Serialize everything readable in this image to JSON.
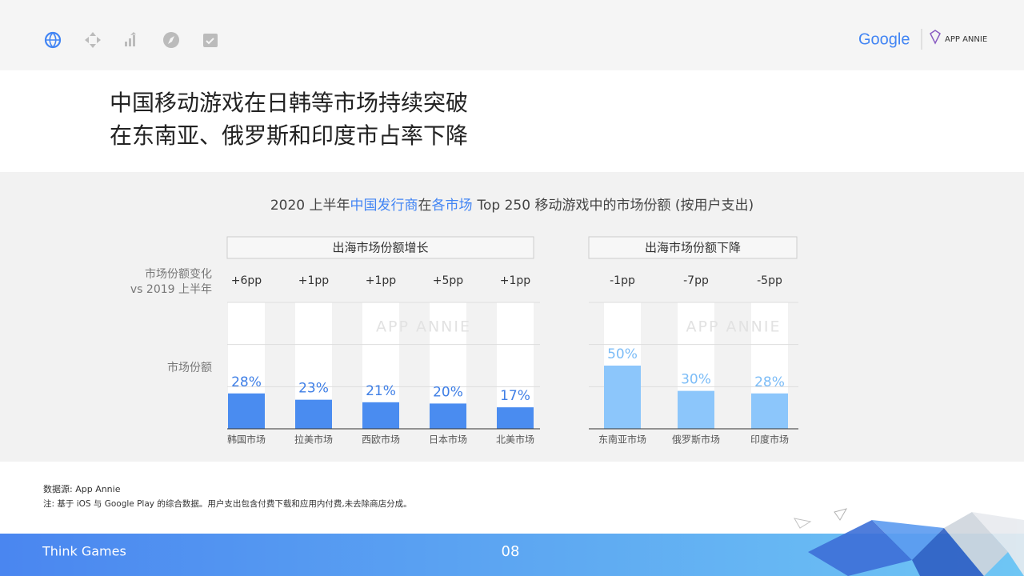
{
  "header": {
    "google_logo": "Google",
    "partner_logo": "APP ANNIE"
  },
  "title_lines": [
    "中国移动游戏在日韩等市场持续突破",
    "在东南亚、俄罗斯和印度市占率下降"
  ],
  "chart_header": {
    "title_parts": [
      "2020 上半年",
      "中国发行商",
      "在",
      "各市场",
      "Top 250 移动游戏中的市场份额 (按用户支出)"
    ],
    "title_highlight": [
      false,
      true,
      false,
      true,
      false
    ],
    "row_label_change": [
      "市场份额变化",
      "vs 2019 上半年"
    ],
    "row_label_share": "市场份额",
    "watermark": "APP ANNIE"
  },
  "chart_data": [
    {
      "type": "bar",
      "group_title": "出海市场份额增长",
      "categories": [
        "韩国市场",
        "拉美市场",
        "西欧市场",
        "日本市场",
        "北美市场"
      ],
      "values": [
        28,
        23,
        21,
        20,
        17
      ],
      "value_labels": [
        "28%",
        "23%",
        "21%",
        "20%",
        "17%"
      ],
      "change_labels": [
        "+6pp",
        "+1pp",
        "+1pp",
        "+5pp",
        "+1pp"
      ],
      "color": "#4a8cf0",
      "label_color": "#3f7fe6",
      "ylim": [
        0,
        100
      ]
    },
    {
      "type": "bar",
      "group_title": "出海市场份额下降",
      "categories": [
        "东南亚市场",
        "俄罗斯市场",
        "印度市场"
      ],
      "values": [
        50,
        30,
        28
      ],
      "value_labels": [
        "50%",
        "30%",
        "28%"
      ],
      "change_labels": [
        "-1pp",
        "-7pp",
        "-5pp"
      ],
      "color": "#8cc6fb",
      "label_color": "#7bbcf7",
      "ylim": [
        0,
        100
      ]
    }
  ],
  "footer": {
    "source": "数据源: App Annie",
    "note": "注: 基于 iOS 与 Google Play 的综合数据。用户支出包含付费下载和应用内付费,未去除商店分成。",
    "brand": "Think Games",
    "page_number": "08"
  }
}
